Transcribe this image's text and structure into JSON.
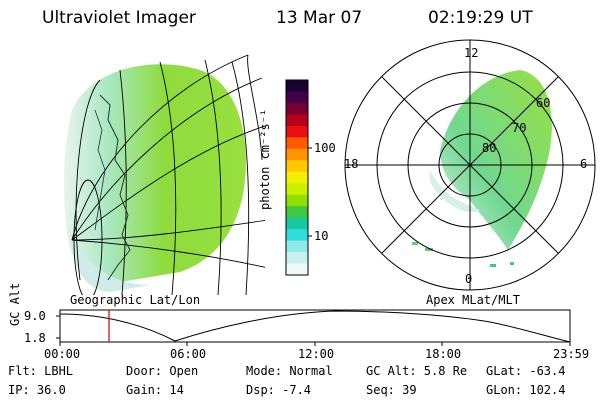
{
  "header": {
    "instrument": "Ultraviolet Imager",
    "date": "13 Mar 07",
    "time": "02:19:29 UT"
  },
  "left_panel": {
    "caption": "Geographic Lat/Lon"
  },
  "right_panel": {
    "caption": "Apex MLat/MLT",
    "mlt_labels": [
      "12",
      "18",
      "6",
      "0"
    ],
    "lat_labels": [
      "60",
      "70",
      "80"
    ]
  },
  "colorbar": {
    "label": "photon cm⁻²s⁻¹",
    "ticks": [
      "100",
      "10"
    ],
    "colors": [
      "#1a0030",
      "#40004a",
      "#7a0030",
      "#b8001a",
      "#e81010",
      "#ff5a00",
      "#ff9400",
      "#ffc800",
      "#f4ee00",
      "#c8f000",
      "#8ee000",
      "#40c840",
      "#18c8a0",
      "#30dcdc",
      "#90e8e8",
      "#c8f0f0",
      "#f0f8f8"
    ]
  },
  "timeline": {
    "ylabel": "GC Alt",
    "y_ticks": [
      "9.0",
      "1.8"
    ],
    "x_ticks": [
      "00:00",
      "06:00",
      "12:00",
      "18:00",
      "23:59"
    ],
    "marker_time": "02:19:29",
    "marker_color": "#cc0000"
  },
  "info": {
    "flt": "Flt: LBHL",
    "door": "Door: Open",
    "mode": "Mode: Normal",
    "gc_alt": "GC Alt: 5.8 Re",
    "glat": "GLat: -63.4",
    "ip": "IP: 36.0",
    "gain": "Gain: 14",
    "dsp": "Dsp:   -7.4",
    "seq": "Seq: 39",
    "glon": "GLon: 102.4"
  }
}
